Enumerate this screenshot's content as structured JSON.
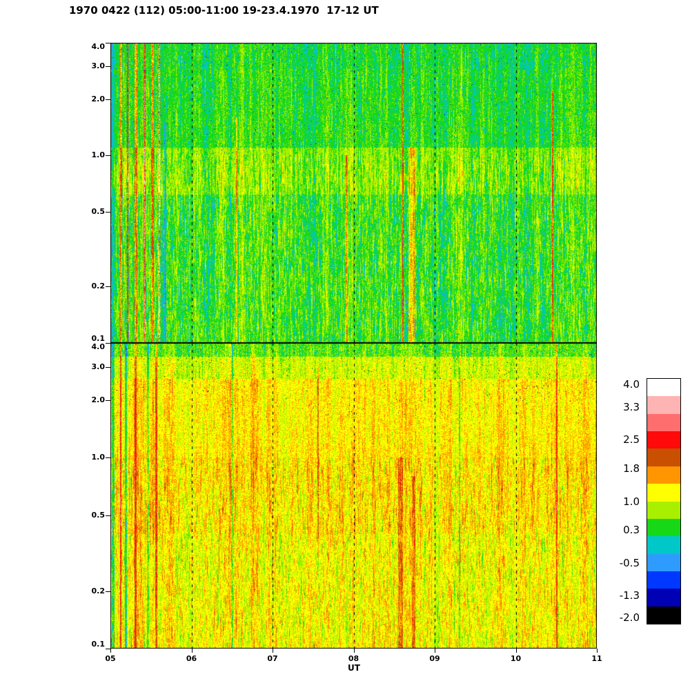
{
  "chart_data": {
    "type": "heatmap",
    "title": "1970 0422 (112) 05:00-11:00 19-23.4.1970  17-12 UT",
    "xlabel": "UT",
    "ylabel": "",
    "x_range_hours": [
      5,
      11
    ],
    "x_ticks": [
      "05",
      "06",
      "07",
      "08",
      "09",
      "10",
      "11"
    ],
    "grid_hours": [
      6,
      7,
      8,
      9,
      10
    ],
    "grid_style": "dashed-vertical-black",
    "y_scale": "log",
    "y_range": [
      0.1,
      4.0
    ],
    "y_ticks": [
      "4.0",
      "3.0",
      "2.0",
      "1.0",
      "0.5",
      "0.2",
      "0.1"
    ],
    "colorbar": {
      "position": "right",
      "value_range": [
        -2.0,
        4.0
      ],
      "ticks": [
        "4.0",
        "3.3",
        "2.5",
        "1.8",
        "1.0",
        "0.3",
        "-0.5",
        "-1.3",
        "-2.0"
      ],
      "colors_top_to_bottom": [
        "#ffffff",
        "#ffb4b4",
        "#ff6e6e",
        "#ff0a0a",
        "#c85000",
        "#ff9600",
        "#ffff00",
        "#a8f000",
        "#16d816",
        "#00c8c8",
        "#2e9bff",
        "#0038ff",
        "#0000b4",
        "#000000"
      ]
    },
    "panels": [
      {
        "id": "upper",
        "appearance": "speckled green/cyan noise; light yellow-green band near 0.6-1.0; yellow and red vertical streaks 05:05-05:40; bright yellow column near 08:40 below 1.0",
        "seed": 1337,
        "bands": [
          {
            "f_hi": 4.0,
            "f_lo": 2.9,
            "base": 0.32,
            "jitter": 0.5
          },
          {
            "f_hi": 2.9,
            "f_lo": 1.1,
            "base": 0.4,
            "jitter": 0.46
          },
          {
            "f_hi": 1.1,
            "f_lo": 0.62,
            "base": 0.7,
            "jitter": 0.36
          },
          {
            "f_hi": 0.62,
            "f_lo": 0.1,
            "base": 0.46,
            "jitter": 0.48
          }
        ],
        "dot_rate": 0.007,
        "dot_value": -0.9,
        "dot_fmin": 0.9,
        "streaks": [
          {
            "hour": 5.02,
            "w": 3,
            "amount": -0.5,
            "f_lo": 0.1,
            "f_hi": 4.0
          },
          {
            "hour": 5.12,
            "w": 3,
            "amount": 1.3,
            "f_lo": 0.1,
            "f_hi": 4.0
          },
          {
            "hour": 5.2,
            "w": 2,
            "amount": 2.0,
            "f_lo": 0.1,
            "f_hi": 4.0
          },
          {
            "hour": 5.3,
            "w": 4,
            "amount": 1.2,
            "f_lo": 0.1,
            "f_hi": 4.0
          },
          {
            "hour": 5.42,
            "w": 2,
            "amount": 2.3,
            "f_lo": 0.1,
            "f_hi": 4.0
          },
          {
            "hour": 5.5,
            "w": 4,
            "amount": 1.4,
            "f_lo": 0.1,
            "f_hi": 4.0
          },
          {
            "hour": 5.6,
            "w": 2,
            "amount": 2.5,
            "f_lo": 0.1,
            "f_hi": 4.0
          },
          {
            "hour": 5.66,
            "w": 3,
            "amount": -0.7,
            "f_lo": 0.1,
            "f_hi": 1.5
          },
          {
            "hour": 6.55,
            "w": 2,
            "amount": 1.1,
            "f_lo": 0.1,
            "f_hi": 1.6
          },
          {
            "hour": 7.9,
            "w": 2,
            "amount": 1.0,
            "f_lo": 0.1,
            "f_hi": 1.0
          },
          {
            "hour": 8.6,
            "w": 2,
            "amount": 1.6,
            "f_lo": 0.1,
            "f_hi": 4.0
          },
          {
            "hour": 8.68,
            "w": 9,
            "amount": 0.85,
            "f_lo": 0.1,
            "f_hi": 1.1
          },
          {
            "hour": 10.45,
            "w": 2,
            "amount": 1.5,
            "f_lo": 0.1,
            "f_hi": 2.2
          }
        ]
      },
      {
        "id": "lower",
        "appearance": "speckled yellow/orange noise; green-cyan speckle strip at top edge; green and red vertical lines near left edge; darker orange blobs near 08:30-08:45",
        "seed": 7331,
        "bands": [
          {
            "f_hi": 4.0,
            "f_lo": 3.4,
            "base": 0.55,
            "jitter": 0.75
          },
          {
            "f_hi": 3.4,
            "f_lo": 2.6,
            "base": 1.0,
            "jitter": 0.62
          },
          {
            "f_hi": 2.6,
            "f_lo": 1.2,
            "base": 1.28,
            "jitter": 0.5
          },
          {
            "f_hi": 1.2,
            "f_lo": 0.4,
            "base": 1.33,
            "jitter": 0.46
          },
          {
            "f_hi": 0.4,
            "f_lo": 0.1,
            "base": 1.2,
            "jitter": 0.38
          }
        ],
        "dot_rate": 0.004,
        "dot_value": -1.6,
        "dot_fmin": 1.6,
        "streaks": [
          {
            "hour": 5.02,
            "w": 4,
            "amount": -0.8,
            "f_lo": 0.1,
            "f_hi": 4.0
          },
          {
            "hour": 5.12,
            "w": 2,
            "amount": 1.1,
            "f_lo": 0.1,
            "f_hi": 4.0
          },
          {
            "hour": 5.18,
            "w": 3,
            "amount": -0.9,
            "f_lo": 0.1,
            "f_hi": 4.0
          },
          {
            "hour": 5.3,
            "w": 3,
            "amount": 0.7,
            "f_lo": 0.1,
            "f_hi": 4.0
          },
          {
            "hour": 5.45,
            "w": 3,
            "amount": -0.6,
            "f_lo": 0.1,
            "f_hi": 4.0
          },
          {
            "hour": 5.55,
            "w": 3,
            "amount": 0.8,
            "f_lo": 0.1,
            "f_hi": 4.0
          },
          {
            "hour": 6.5,
            "w": 2,
            "amount": -0.8,
            "f_lo": 0.1,
            "f_hi": 4.0
          },
          {
            "hour": 7.55,
            "w": 2,
            "amount": 0.7,
            "f_lo": 0.3,
            "f_hi": 3.0
          },
          {
            "hour": 8.55,
            "w": 7,
            "amount": 0.5,
            "f_lo": 0.1,
            "f_hi": 1.0
          },
          {
            "hour": 8.72,
            "w": 5,
            "amount": 0.55,
            "f_lo": 0.1,
            "f_hi": 0.8
          },
          {
            "hour": 9.3,
            "w": 2,
            "amount": -0.6,
            "f_lo": 0.1,
            "f_hi": 3.0
          },
          {
            "hour": 10.5,
            "w": 2,
            "amount": 0.9,
            "f_lo": 0.1,
            "f_hi": 4.0
          }
        ]
      }
    ]
  }
}
